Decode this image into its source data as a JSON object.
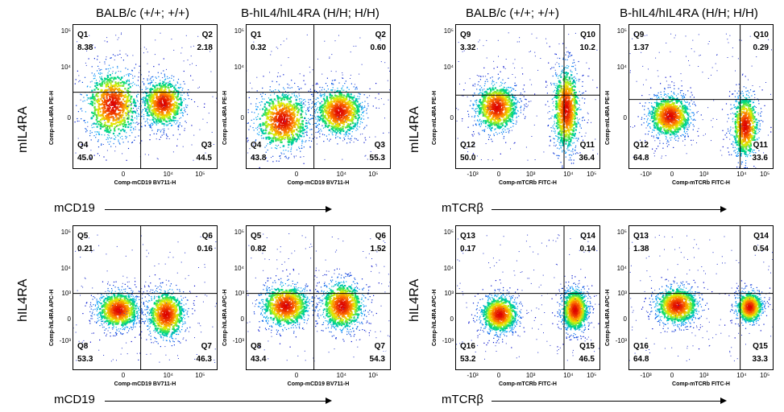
{
  "columns": [
    {
      "label": "BALB/c (+/+; +/+)",
      "cx": 177
    },
    {
      "label": "B-hIL4/hIL4RA (H/H; H/H)",
      "cx": 385
    },
    {
      "label": "BALB/c (+/+; +/+)",
      "cx": 636
    },
    {
      "label": "B-hIL4/hIL4RA (H/H; H/H)",
      "cx": 855
    }
  ],
  "row_labels": [
    "mIL4RA",
    "hIL4RA",
    "mIL4RA",
    "hIL4RA"
  ],
  "axis_labels": [
    "mCD19",
    "mCD19",
    "mTCRβ",
    "mTCRβ"
  ],
  "chart_data": [
    {
      "type": "scatter",
      "group": "mCD19",
      "strain": "BALB/c (+/+; +/+)",
      "ylabel": "Comp-mIL4RA PE-H",
      "xlabel": "Comp-mCD19 BV711-H",
      "xticks": [
        "0",
        "10⁴",
        "10⁵"
      ],
      "yticks": [
        "10⁵",
        "10⁴",
        "0"
      ],
      "quadrants": [
        {
          "name": "Q1",
          "value": "8.38"
        },
        {
          "name": "Q2",
          "value": "2.18"
        },
        {
          "name": "Q3",
          "value": "44.5"
        },
        {
          "name": "Q4",
          "value": "45.0"
        }
      ]
    },
    {
      "type": "scatter",
      "group": "mCD19",
      "strain": "B-hIL4/hIL4RA (H/H; H/H)",
      "ylabel": "Comp-mIL4RA PE-H",
      "xlabel": "Comp-mCD19 BV711-H",
      "xticks": [
        "0",
        "10⁴",
        "10⁵"
      ],
      "yticks": [
        "10⁵",
        "10⁴",
        "0"
      ],
      "quadrants": [
        {
          "name": "Q1",
          "value": "0.32"
        },
        {
          "name": "Q2",
          "value": "0.60"
        },
        {
          "name": "Q3",
          "value": "55.3"
        },
        {
          "name": "Q4",
          "value": "43.8"
        }
      ]
    },
    {
      "type": "scatter",
      "group": "mTCRb",
      "strain": "BALB/c (+/+; +/+)",
      "ylabel": "Comp-mIL4RA PE-H",
      "xlabel": "Comp-mTCRb FITC-H",
      "xticks": [
        "-10³",
        "0",
        "10³",
        "10⁴",
        "10⁵"
      ],
      "yticks": [
        "10⁵",
        "10⁴",
        "0"
      ],
      "quadrants": [
        {
          "name": "Q9",
          "value": "3.32"
        },
        {
          "name": "Q10",
          "value": "10.2"
        },
        {
          "name": "Q11",
          "value": "36.4"
        },
        {
          "name": "Q12",
          "value": "50.0"
        }
      ]
    },
    {
      "type": "scatter",
      "group": "mTCRb",
      "strain": "B-hIL4/hIL4RA (H/H; H/H)",
      "ylabel": "Comp-mIL4RA PE-H",
      "xlabel": "Comp-mTCRb FITC-H",
      "xticks": [
        "-10³",
        "0",
        "10³",
        "10⁴",
        "10⁵"
      ],
      "yticks": [
        "10⁵",
        "10⁴",
        "0"
      ],
      "quadrants": [
        {
          "name": "Q9",
          "value": "1.37"
        },
        {
          "name": "Q10",
          "value": "0.29"
        },
        {
          "name": "Q11",
          "value": "33.6"
        },
        {
          "name": "Q12",
          "value": "64.8"
        }
      ]
    },
    {
      "type": "scatter",
      "group": "mCD19",
      "strain": "BALB/c (+/+; +/+)",
      "ylabel": "Comp-hIL4RA APC-H",
      "xlabel": "Comp-mCD19 BV711-H",
      "xticks": [
        "0",
        "10⁴",
        "10⁵"
      ],
      "yticks": [
        "10⁵",
        "10⁴",
        "10³",
        "0",
        "-10³"
      ],
      "quadrants": [
        {
          "name": "Q5",
          "value": "0.21"
        },
        {
          "name": "Q6",
          "value": "0.16"
        },
        {
          "name": "Q7",
          "value": "46.3"
        },
        {
          "name": "Q8",
          "value": "53.3"
        }
      ]
    },
    {
      "type": "scatter",
      "group": "mCD19",
      "strain": "B-hIL4/hIL4RA (H/H; H/H)",
      "ylabel": "Comp-hIL4RA APC-H",
      "xlabel": "Comp-mCD19 BV711-H",
      "xticks": [
        "0",
        "10⁴",
        "10⁵"
      ],
      "yticks": [
        "10⁵",
        "10⁴",
        "10³",
        "0",
        "-10³"
      ],
      "quadrants": [
        {
          "name": "Q5",
          "value": "0.82"
        },
        {
          "name": "Q6",
          "value": "1.52"
        },
        {
          "name": "Q7",
          "value": "54.3"
        },
        {
          "name": "Q8",
          "value": "43.4"
        }
      ]
    },
    {
      "type": "scatter",
      "group": "mTCRb",
      "strain": "BALB/c (+/+; +/+)",
      "ylabel": "Comp-hIL4RA APC-H",
      "xlabel": "Comp-mTCRb FITC-H",
      "xticks": [
        "-10³",
        "0",
        "10³",
        "10⁴",
        "10⁵"
      ],
      "yticks": [
        "10⁵",
        "10⁴",
        "10³",
        "0",
        "-10³"
      ],
      "quadrants": [
        {
          "name": "Q13",
          "value": "0.17"
        },
        {
          "name": "Q14",
          "value": "0.14"
        },
        {
          "name": "Q15",
          "value": "46.5"
        },
        {
          "name": "Q16",
          "value": "53.2"
        }
      ]
    },
    {
      "type": "scatter",
      "group": "mTCRb",
      "strain": "B-hIL4/hIL4RA (H/H; H/H)",
      "ylabel": "Comp-hIL4RA APC-H",
      "xlabel": "Comp-mTCRb FITC-H",
      "xticks": [
        "-10³",
        "0",
        "10³",
        "10⁴",
        "10⁵"
      ],
      "yticks": [
        "10⁵",
        "10⁴",
        "10³",
        "0",
        "-10³"
      ],
      "quadrants": [
        {
          "name": "Q13",
          "value": "1.38"
        },
        {
          "name": "Q14",
          "value": "0.54"
        },
        {
          "name": "Q15",
          "value": "33.3"
        },
        {
          "name": "Q16",
          "value": "64.8"
        }
      ]
    }
  ]
}
